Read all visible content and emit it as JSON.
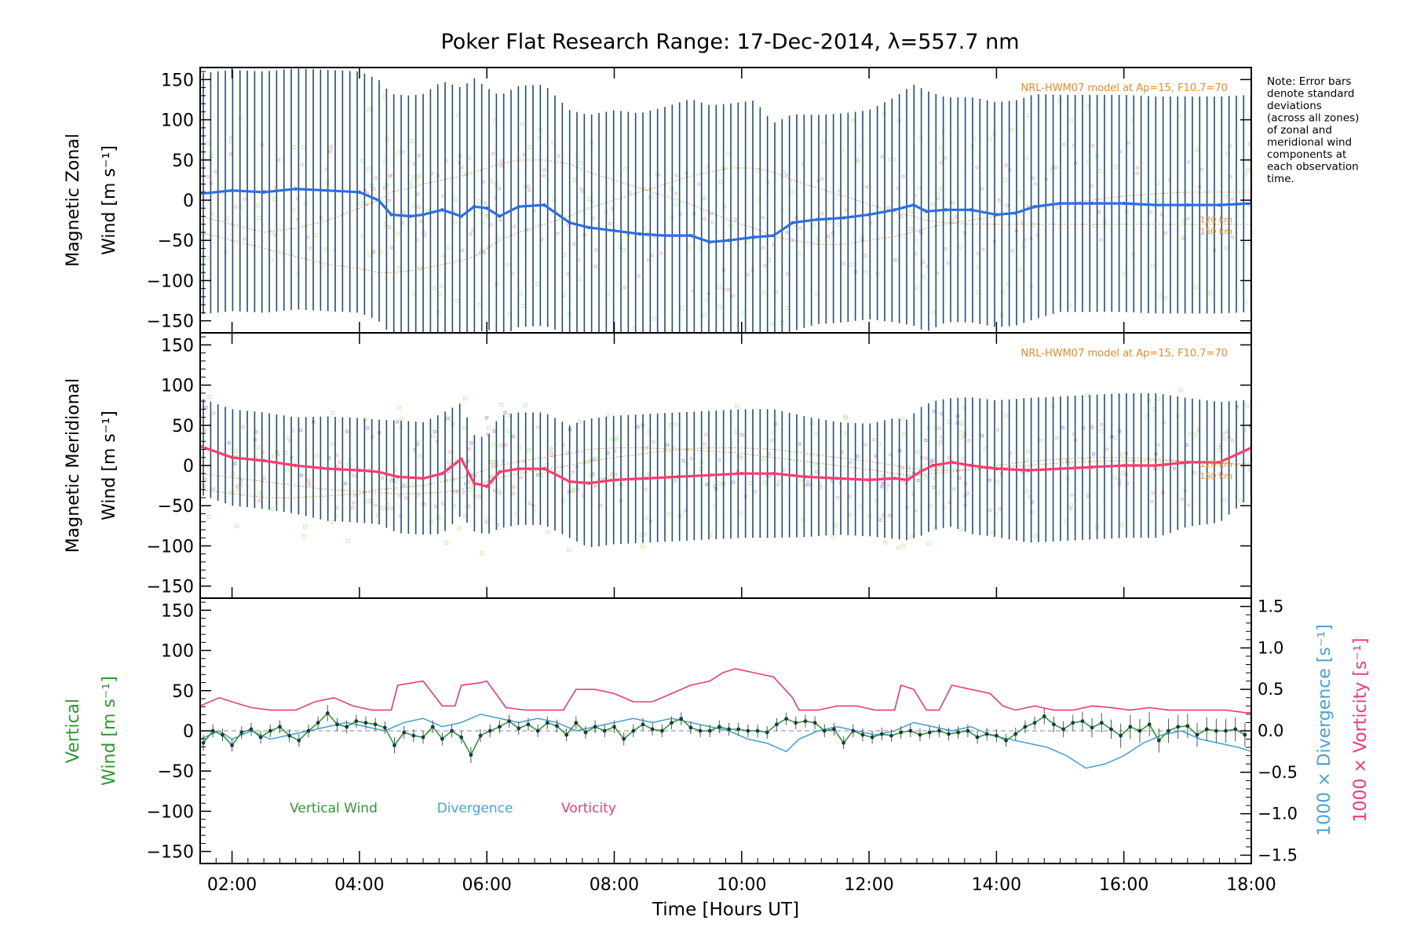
{
  "title": "Poker Flat Research Range: 17-Dec-2014, λ=557.7 nm",
  "note": [
    "Note: Error bars",
    "denote standard",
    "deviations",
    "(across all zones)",
    "of zonal and",
    "meridional wind",
    "components at",
    "each observation",
    "time."
  ],
  "colors": {
    "zonal": "#2c6fe0",
    "meridional": "#ff3c6e",
    "vertical": "#2e9a2e",
    "divergence": "#4aa3d6",
    "vorticity": "#ee3a78",
    "errorbar": "#1f4e79",
    "model": "#f08a24",
    "scatter_green": "#c6f0a0",
    "scatter_red": "#f0b8b8",
    "scatter_blue": "#a8a8e8",
    "axis": "#000000"
  },
  "chart_data": [
    {
      "type": "line",
      "panel": "zonal",
      "ylabel_line1": "Magnetic Zonal",
      "ylabel_line2": "Wind [m s⁻¹]",
      "model_label": "NRL-HWM07 model at Ap=15, F10.7=70",
      "model_heights": [
        "120 km",
        "150 km"
      ],
      "ylim": [
        -165,
        165
      ],
      "xlim": [
        1.5,
        18.0
      ],
      "yticks": [
        -150,
        -100,
        -50,
        0,
        50,
        100,
        150
      ],
      "ytick_labels": [
        "−150",
        "−100",
        "−50",
        "0",
        "50",
        "100",
        "150"
      ],
      "x": [
        1.5,
        2.0,
        2.5,
        3.0,
        3.5,
        4.0,
        4.3,
        4.5,
        4.8,
        5.0,
        5.3,
        5.6,
        5.8,
        6.0,
        6.2,
        6.5,
        6.9,
        7.3,
        7.6,
        8.0,
        8.4,
        8.8,
        9.2,
        9.5,
        9.8,
        10.2,
        10.5,
        10.8,
        11.2,
        11.6,
        12.0,
        12.4,
        12.7,
        12.9,
        13.2,
        13.6,
        14.0,
        14.3,
        14.6,
        15.0,
        15.5,
        16.0,
        16.5,
        17.0,
        17.5,
        18.0
      ],
      "values": [
        8,
        12,
        10,
        14,
        12,
        10,
        0,
        -18,
        -20,
        -18,
        -12,
        -20,
        -8,
        -10,
        -20,
        -8,
        -6,
        -28,
        -34,
        -38,
        -42,
        -44,
        -44,
        -52,
        -50,
        -46,
        -44,
        -28,
        -24,
        -22,
        -18,
        -12,
        -6,
        -14,
        -12,
        -12,
        -18,
        -16,
        -8,
        -4,
        -4,
        -4,
        -6,
        -6,
        -6,
        -4
      ],
      "error_half": [
        150,
        150,
        150,
        150,
        150,
        150,
        150,
        150,
        150,
        150,
        160,
        160,
        160,
        150,
        150,
        150,
        150,
        140,
        140,
        150,
        150,
        160,
        170,
        170,
        170,
        170,
        140,
        135,
        130,
        130,
        130,
        140,
        150,
        150,
        140,
        140,
        140,
        140,
        140,
        135,
        135,
        135,
        135,
        135,
        135,
        135
      ],
      "model_120": [
        -20,
        -30,
        -40,
        -35,
        -25,
        -10,
        0,
        10,
        15,
        20,
        25,
        30,
        35,
        40,
        45,
        50,
        50,
        45,
        35,
        25,
        15,
        5,
        -5,
        -15,
        -25,
        -35,
        -45,
        -50,
        -55,
        -55,
        -50,
        -45,
        -40,
        -35,
        -30,
        -25,
        -20,
        -15,
        -10,
        -5,
        0,
        5,
        8,
        10,
        10,
        10
      ],
      "model_150": [
        -40,
        -50,
        -60,
        -70,
        -80,
        -85,
        -90,
        -90,
        -88,
        -85,
        -80,
        -75,
        -70,
        -60,
        -50,
        -40,
        -30,
        -20,
        -10,
        0,
        10,
        20,
        30,
        35,
        40,
        40,
        35,
        25,
        15,
        5,
        -5,
        -15,
        -20,
        -25,
        -28,
        -30,
        -30,
        -30,
        -30,
        -30,
        -30,
        -30,
        -30,
        -30,
        -30,
        -30
      ]
    },
    {
      "type": "line",
      "panel": "meridional",
      "ylabel_line1": "Magnetic Meridional",
      "ylabel_line2": "Wind [m s⁻¹]",
      "model_label": "NRL-HWM07 model at Ap=15, F10.7=70",
      "model_heights": [
        "120 km",
        "150 km"
      ],
      "ylim": [
        -165,
        165
      ],
      "xlim": [
        1.5,
        18.0
      ],
      "yticks": [
        -150,
        -100,
        -50,
        0,
        50,
        100,
        150
      ],
      "ytick_labels": [
        "−150",
        "−100",
        "−50",
        "0",
        "50",
        "100",
        "150"
      ],
      "x": [
        1.5,
        2.0,
        2.5,
        3.0,
        3.5,
        4.0,
        4.3,
        4.6,
        5.0,
        5.3,
        5.6,
        5.8,
        6.0,
        6.2,
        6.5,
        6.9,
        7.3,
        7.6,
        8.0,
        8.5,
        9.0,
        9.5,
        10.0,
        10.5,
        11.0,
        11.5,
        12.0,
        12.4,
        12.6,
        12.8,
        13.0,
        13.3,
        13.6,
        14.0,
        14.5,
        15.0,
        15.5,
        16.0,
        16.5,
        17.0,
        17.5,
        18.0
      ],
      "values": [
        24,
        10,
        6,
        0,
        -4,
        -6,
        -8,
        -14,
        -16,
        -10,
        8,
        -22,
        -26,
        -8,
        -4,
        -4,
        -20,
        -22,
        -18,
        -16,
        -14,
        -12,
        -10,
        -10,
        -14,
        -16,
        -18,
        -16,
        -18,
        -8,
        0,
        4,
        0,
        -4,
        -6,
        -4,
        -2,
        0,
        0,
        4,
        4,
        22
      ],
      "error_half": [
        60,
        60,
        60,
        60,
        65,
        65,
        65,
        70,
        70,
        75,
        70,
        60,
        60,
        70,
        70,
        70,
        70,
        80,
        80,
        80,
        80,
        80,
        80,
        80,
        75,
        70,
        70,
        75,
        75,
        80,
        80,
        80,
        85,
        85,
        90,
        90,
        90,
        90,
        90,
        80,
        75,
        60
      ],
      "model_120": [
        -30,
        -35,
        -40,
        -40,
        -38,
        -35,
        -30,
        -28,
        -25,
        -20,
        -15,
        -10,
        -5,
        0,
        5,
        10,
        15,
        20,
        22,
        22,
        20,
        18,
        15,
        10,
        5,
        0,
        -5,
        -10,
        -12,
        -12,
        -10,
        -8,
        -5,
        0,
        5,
        8,
        10,
        10,
        8,
        5,
        2,
        0
      ],
      "model_150": [
        -10,
        -15,
        -20,
        -25,
        -30,
        -32,
        -34,
        -35,
        -35,
        -33,
        -30,
        -25,
        -20,
        -15,
        -10,
        -5,
        0,
        5,
        10,
        15,
        20,
        22,
        22,
        20,
        15,
        10,
        5,
        0,
        -3,
        -5,
        -6,
        -6,
        -5,
        -3,
        0,
        3,
        5,
        6,
        6,
        5,
        3,
        2
      ]
    },
    {
      "type": "line",
      "panel": "vertical",
      "ylabel_line1": "Vertical",
      "ylabel_line2": "Wind [m s⁻¹]",
      "ylabel_right_div": "1000 × Divergence [s⁻¹]",
      "ylabel_right_vort": "1000 × Vorticity [s⁻¹]",
      "ylim": [
        -165,
        165
      ],
      "y2lim": [
        -1.6,
        1.6
      ],
      "xlim": [
        1.5,
        18.0
      ],
      "yticks": [
        -150,
        -100,
        -50,
        0,
        50,
        100,
        150
      ],
      "ytick_labels": [
        "−150",
        "−100",
        "−50",
        "0",
        "50",
        "100",
        "150"
      ],
      "y2ticks": [
        -1.5,
        -1.0,
        -0.5,
        0.0,
        0.5,
        1.0,
        1.5
      ],
      "y2tick_labels": [
        "−1.5",
        "−1.0",
        "−0.5",
        "0.0",
        "0.5",
        "1.0",
        "1.5"
      ],
      "xticks": [
        2,
        4,
        6,
        8,
        10,
        12,
        14,
        16,
        18
      ],
      "xtick_labels": [
        "02:00",
        "04:00",
        "06:00",
        "08:00",
        "10:00",
        "12:00",
        "14:00",
        "16:00",
        "18:00"
      ],
      "xlabel": "Time [Hours UT]",
      "legend": [
        "Vertical Wind",
        "Divergence",
        "Vorticity"
      ],
      "series": [
        {
          "name": "Vertical Wind",
          "x": [
            1.55,
            1.7,
            1.85,
            2.0,
            2.15,
            2.3,
            2.45,
            2.6,
            2.75,
            2.9,
            3.05,
            3.2,
            3.35,
            3.5,
            3.65,
            3.8,
            3.95,
            4.1,
            4.25,
            4.4,
            4.55,
            4.7,
            4.85,
            5.0,
            5.15,
            5.3,
            5.45,
            5.6,
            5.75,
            5.9,
            6.05,
            6.2,
            6.35,
            6.5,
            6.65,
            6.8,
            6.95,
            7.1,
            7.25,
            7.4,
            7.55,
            7.7,
            7.85,
            8.0,
            8.15,
            8.3,
            8.45,
            8.6,
            8.75,
            8.9,
            9.05,
            9.2,
            9.35,
            9.5,
            9.65,
            9.8,
            9.95,
            10.1,
            10.25,
            10.4,
            10.55,
            10.7,
            10.85,
            11.0,
            11.15,
            11.3,
            11.45,
            11.6,
            11.75,
            11.9,
            12.05,
            12.2,
            12.35,
            12.5,
            12.65,
            12.8,
            12.95,
            13.1,
            13.25,
            13.4,
            13.55,
            13.7,
            13.85,
            14.0,
            14.15,
            14.3,
            14.45,
            14.6,
            14.75,
            14.9,
            15.05,
            15.2,
            15.35,
            15.5,
            15.65,
            15.8,
            15.95,
            16.1,
            16.25,
            16.4,
            16.55,
            16.7,
            16.85,
            17.0,
            17.15,
            17.3,
            17.45,
            17.6,
            17.75,
            17.9
          ],
          "values": [
            -15,
            0,
            -5,
            -18,
            -2,
            2,
            -8,
            0,
            5,
            -6,
            -12,
            0,
            10,
            22,
            8,
            5,
            12,
            10,
            8,
            4,
            -18,
            -2,
            -6,
            -8,
            5,
            -10,
            0,
            -8,
            -30,
            -6,
            0,
            5,
            12,
            3,
            8,
            0,
            10,
            6,
            -5,
            10,
            -2,
            5,
            0,
            5,
            -10,
            0,
            8,
            2,
            0,
            10,
            15,
            4,
            0,
            0,
            5,
            2,
            2,
            0,
            0,
            -2,
            8,
            15,
            10,
            12,
            10,
            0,
            2,
            -15,
            0,
            -5,
            -8,
            -4,
            -6,
            -2,
            0,
            -5,
            -2,
            0,
            -4,
            -2,
            0,
            -8,
            -4,
            -6,
            -12,
            -4,
            5,
            10,
            18,
            8,
            2,
            10,
            12,
            4,
            10,
            2,
            -6,
            5,
            0,
            8,
            -12,
            0,
            5,
            6,
            -5,
            2,
            0,
            0,
            2,
            -5
          ],
          "error_half": [
            10,
            8,
            8,
            8,
            8,
            8,
            8,
            8,
            8,
            8,
            8,
            8,
            8,
            10,
            8,
            8,
            8,
            8,
            8,
            8,
            10,
            8,
            8,
            8,
            8,
            8,
            8,
            8,
            10,
            8,
            8,
            8,
            8,
            8,
            8,
            8,
            8,
            8,
            8,
            8,
            8,
            8,
            8,
            8,
            8,
            8,
            8,
            8,
            8,
            8,
            8,
            8,
            8,
            8,
            8,
            8,
            8,
            8,
            8,
            8,
            8,
            8,
            8,
            8,
            8,
            8,
            8,
            8,
            8,
            8,
            8,
            8,
            8,
            8,
            8,
            8,
            8,
            8,
            8,
            8,
            8,
            8,
            8,
            8,
            8,
            8,
            8,
            8,
            10,
            10,
            10,
            10,
            12,
            12,
            12,
            12,
            15,
            15,
            15,
            15,
            15,
            15,
            15,
            15,
            15,
            15,
            15,
            15,
            15,
            15
          ]
        },
        {
          "name": "Divergence",
          "x": [
            1.5,
            1.8,
            2.0,
            2.3,
            2.6,
            2.9,
            3.2,
            3.5,
            3.8,
            4.1,
            4.4,
            4.7,
            5.0,
            5.3,
            5.6,
            5.9,
            6.2,
            6.5,
            6.8,
            7.1,
            7.4,
            7.7,
            8.0,
            8.3,
            8.6,
            8.9,
            9.2,
            9.5,
            9.8,
            10.1,
            10.4,
            10.7,
            10.9,
            11.2,
            11.5,
            11.8,
            12.1,
            12.4,
            12.7,
            13.0,
            13.3,
            13.6,
            13.9,
            14.2,
            14.5,
            14.8,
            15.1,
            15.4,
            15.7,
            16.0,
            16.3,
            16.6,
            16.9,
            17.2,
            17.5,
            17.8,
            18.0
          ],
          "values": [
            -0.1,
            0.0,
            -0.1,
            0.0,
            -0.1,
            -0.05,
            0.0,
            0.05,
            0.1,
            0.05,
            0.0,
            0.1,
            0.15,
            0.05,
            0.1,
            0.2,
            0.15,
            0.1,
            0.15,
            0.1,
            0.0,
            0.05,
            0.1,
            0.15,
            0.1,
            0.15,
            0.1,
            0.05,
            0.0,
            -0.1,
            -0.15,
            -0.25,
            -0.1,
            0.0,
            0.05,
            0.0,
            -0.05,
            0.0,
            0.1,
            0.05,
            0.0,
            0.05,
            -0.05,
            -0.1,
            -0.15,
            -0.2,
            -0.3,
            -0.45,
            -0.4,
            -0.3,
            -0.15,
            -0.05,
            0.0,
            -0.1,
            -0.15,
            -0.2,
            -0.25
          ]
        },
        {
          "name": "Vorticity",
          "x": [
            1.5,
            1.8,
            2.0,
            2.3,
            2.6,
            3.0,
            3.3,
            3.6,
            3.9,
            4.2,
            4.5,
            4.6,
            5.0,
            5.3,
            5.5,
            5.6,
            5.9,
            6.0,
            6.3,
            6.6,
            6.9,
            7.2,
            7.4,
            7.7,
            8.0,
            8.3,
            8.6,
            8.9,
            9.2,
            9.5,
            9.7,
            9.9,
            10.2,
            10.5,
            10.8,
            10.9,
            11.2,
            11.5,
            11.8,
            12.1,
            12.4,
            12.5,
            12.7,
            12.9,
            13.1,
            13.3,
            13.6,
            13.9,
            14.1,
            14.3,
            14.6,
            14.9,
            15.2,
            15.5,
            15.8,
            16.1,
            16.4,
            16.7,
            17.0,
            17.3,
            17.6,
            17.9,
            18.0
          ],
          "values": [
            0.3,
            0.4,
            0.35,
            0.28,
            0.25,
            0.25,
            0.35,
            0.4,
            0.3,
            0.25,
            0.25,
            0.55,
            0.6,
            0.3,
            0.3,
            0.55,
            0.58,
            0.6,
            0.28,
            0.25,
            0.25,
            0.25,
            0.5,
            0.5,
            0.45,
            0.35,
            0.35,
            0.45,
            0.55,
            0.6,
            0.7,
            0.75,
            0.7,
            0.65,
            0.4,
            0.25,
            0.25,
            0.3,
            0.3,
            0.25,
            0.25,
            0.55,
            0.5,
            0.25,
            0.25,
            0.55,
            0.5,
            0.45,
            0.3,
            0.25,
            0.3,
            0.25,
            0.25,
            0.3,
            0.28,
            0.25,
            0.28,
            0.25,
            0.25,
            0.25,
            0.25,
            0.22,
            0.22
          ]
        }
      ]
    }
  ]
}
